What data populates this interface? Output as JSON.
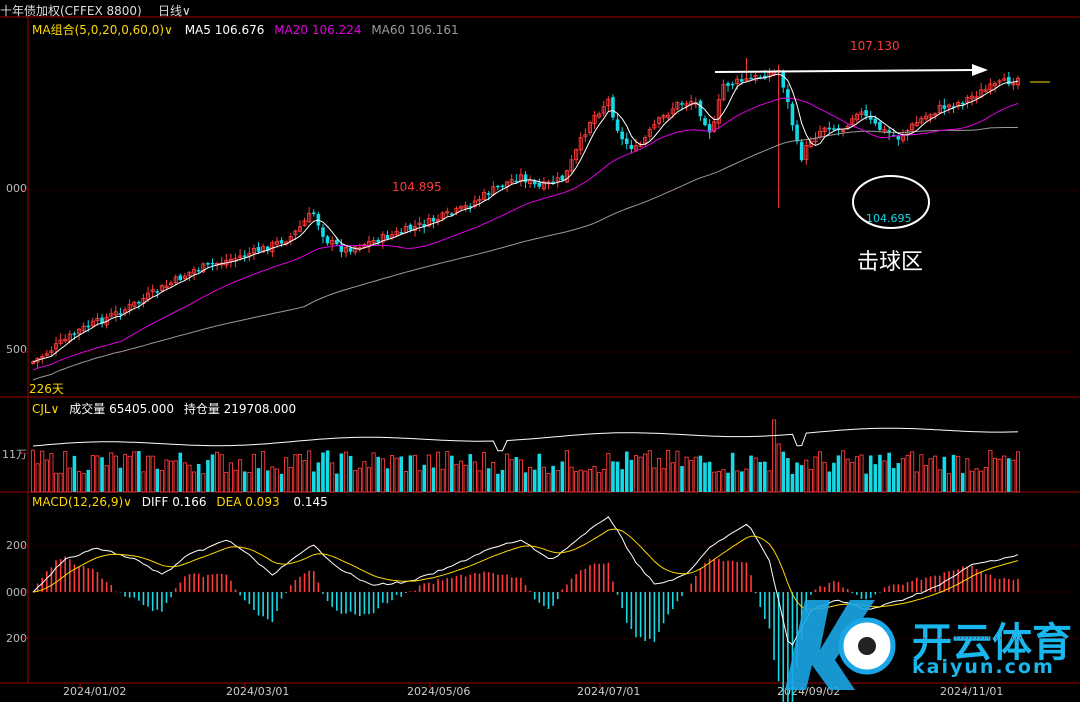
{
  "header": {
    "instrument": "十年债加权(CFFEX 8800)",
    "period": "日线",
    "period_caret": "∨"
  },
  "price_panel": {
    "ma_title": "MA组合(5,0,20,0,60,0)",
    "ma5": {
      "label": "MA5",
      "value": "106.676",
      "color": "#ffffff"
    },
    "ma20": {
      "label": "MA20",
      "value": "106.224",
      "color": "#e000e0"
    },
    "ma60": {
      "label": "MA60",
      "value": "106.161",
      "color": "#9a9a9a"
    },
    "axis_labels": [
      "000",
      "500"
    ],
    "days_label": "226天",
    "high_label": "107.130",
    "prev_high_label": "104.895",
    "low_label": "104.695",
    "annotation": "击球区"
  },
  "volume_panel": {
    "title": "CJL",
    "vol_label": "成交量",
    "vol_value": "65405.000",
    "oi_label": "持仓量",
    "oi_value": "219708.000",
    "axis_label": "11万"
  },
  "macd_panel": {
    "title": "MACD(12,26,9)",
    "diff_label": "DIFF",
    "diff_value": "0.166",
    "dea_label": "DEA",
    "dea_value": "0.093",
    "macd_value": "0.145",
    "axis_labels": [
      "200",
      "000",
      "200"
    ]
  },
  "x_axis": {
    "dates": [
      "2024/01/02",
      "2024/03/01",
      "2024/05/06",
      "2024/07/01",
      "2024/09/02",
      "2024/11/01"
    ]
  },
  "watermark": {
    "cn": "开云体育",
    "en": "kaiyun.com"
  },
  "chart_data": {
    "type": "candlestick",
    "series_key_points": [
      {
        "x": "2024/01/02",
        "close": 101.8
      },
      {
        "x": "2024/03/01",
        "close": 103.3
      },
      {
        "x": "2024/05/06",
        "close": 104.9
      },
      {
        "x": "2024/07/01",
        "close": 105.3
      },
      {
        "x": "2024/09/02",
        "close": 107.0
      },
      {
        "x": "2024/11/01",
        "close": 106.4
      }
    ],
    "annotations": [
      {
        "label": "107.130",
        "type": "high"
      },
      {
        "label": "104.895",
        "type": "local-high"
      },
      {
        "label": "104.695",
        "type": "low"
      }
    ],
    "indicators": [
      "MA5",
      "MA20",
      "MA60",
      "CJL",
      "MACD(12,26,9)"
    ],
    "colors": {
      "up": "#ff3b3b",
      "down": "#16d9e6"
    }
  }
}
